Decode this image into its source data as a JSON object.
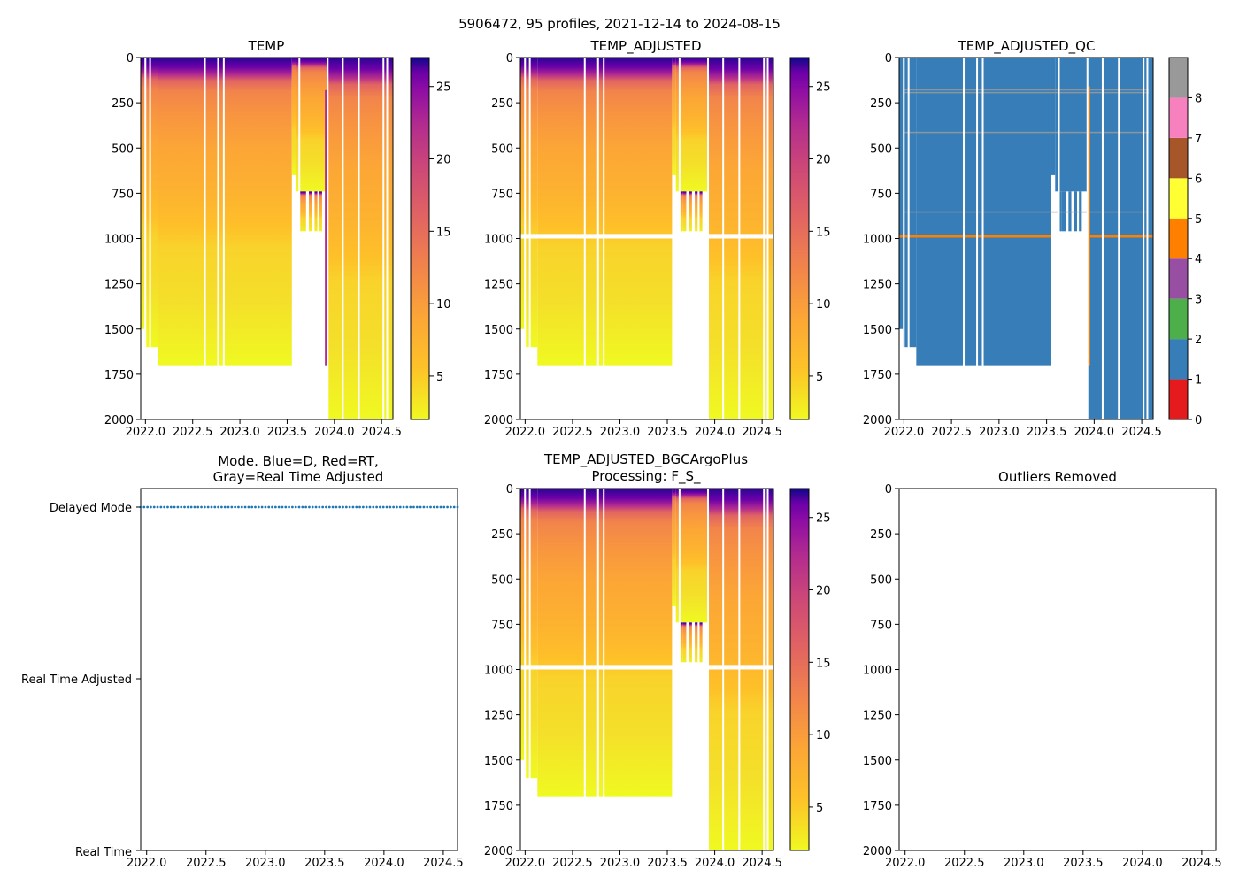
{
  "suptitle": "5906472, 95 profiles, 2021-12-14 to 2024-08-15",
  "x_ticks": [
    "2022.0",
    "2022.5",
    "2023.0",
    "2023.5",
    "2024.0",
    "2024.5"
  ],
  "y_ticks": [
    "0",
    "250",
    "500",
    "750",
    "1000",
    "1250",
    "1500",
    "1750",
    "2000"
  ],
  "temp_cbar_ticks": [
    "5",
    "10",
    "15",
    "20",
    "25"
  ],
  "qc_cbar_ticks": [
    "0",
    "1",
    "2",
    "3",
    "4",
    "5",
    "6",
    "7",
    "8"
  ],
  "qc_colors": [
    "#e41a1c",
    "#377eb8",
    "#4daf4a",
    "#984ea3",
    "#ff7f00",
    "#ffff33",
    "#a65628",
    "#f781bf",
    "#999999"
  ],
  "panels": {
    "temp": {
      "title": "TEMP"
    },
    "temp_adj": {
      "title": "TEMP_ADJUSTED"
    },
    "temp_qc": {
      "title": "TEMP_ADJUSTED_QC"
    },
    "mode": {
      "title_line1": "Mode. Blue=D, Red=RT,",
      "title_line2": "Gray=Real Time Adjusted",
      "y_labels": [
        "Delayed Mode",
        "Real Time Adjusted",
        "Real Time"
      ]
    },
    "bgc": {
      "title_line1": "TEMP_ADJUSTED_BGCArgoPlus",
      "title_line2": "Processing: F_S_"
    },
    "outliers": {
      "title": "Outliers Removed"
    }
  },
  "chart_data": [
    {
      "type": "heatmap",
      "title": "TEMP",
      "xlabel": "",
      "ylabel": "",
      "xlim": [
        2021.95,
        2024.62
      ],
      "ylim": [
        2000,
        0
      ],
      "colormap": "plasma_r",
      "clim": [
        2.0,
        27.0
      ],
      "profile_count": 95,
      "depth_max_early": 1700,
      "depth_max_late": 2000
    },
    {
      "type": "heatmap",
      "title": "TEMP_ADJUSTED",
      "xlim": [
        2021.95,
        2024.62
      ],
      "ylim": [
        2000,
        0
      ],
      "colormap": "plasma_r",
      "clim": [
        2.0,
        27.0
      ],
      "gap_depth": 990
    },
    {
      "type": "heatmap",
      "title": "TEMP_ADJUSTED_QC",
      "xlim": [
        2021.95,
        2024.62
      ],
      "ylim": [
        2000,
        0
      ],
      "categories": [
        0,
        1,
        2,
        3,
        4,
        5,
        6,
        7,
        8
      ],
      "dominant_flag": 1,
      "flag_4_depth": 990,
      "flag_8_depths": [
        175,
        410,
        850
      ]
    },
    {
      "type": "scatter",
      "title": "Mode. Blue=D, Red=RT, Gray=Real Time Adjusted",
      "xlim": [
        2021.95,
        2024.62
      ],
      "categories": [
        "Delayed Mode",
        "Real Time Adjusted",
        "Real Time"
      ],
      "series": [
        {
          "name": "Delayed Mode",
          "count": 95,
          "x_range": [
            2021.95,
            2024.62
          ]
        }
      ]
    },
    {
      "type": "heatmap",
      "title": "TEMP_ADJUSTED_BGCArgoPlus Processing: F_S_",
      "xlim": [
        2021.95,
        2024.62
      ],
      "ylim": [
        2000,
        0
      ],
      "colormap": "plasma_r",
      "clim": [
        2.0,
        27.0
      ]
    },
    {
      "type": "scatter",
      "title": "Outliers Removed",
      "xlim": [
        2021.95,
        2024.62
      ],
      "ylim": [
        2000,
        0
      ],
      "series": []
    }
  ]
}
